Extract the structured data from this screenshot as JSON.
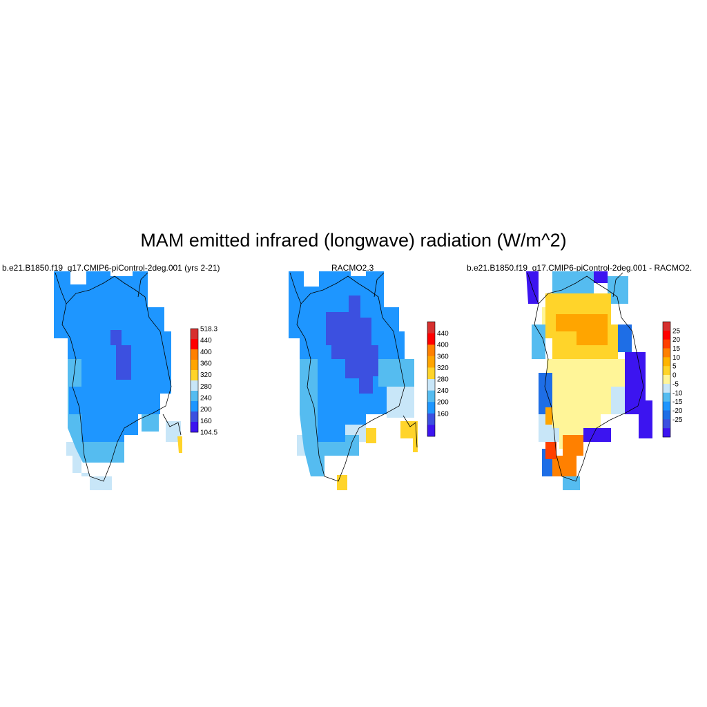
{
  "title": "MAM emitted infrared (longwave) radiation (W/m^2)",
  "panels": [
    {
      "title": "b.e21.B1850.f19_g17.CMIP6-piControl-2deg.001 (yrs 2-21)",
      "colorbar": {
        "labels": [
          "518.3",
          "440",
          "400",
          "360",
          "320",
          "280",
          "240",
          "200",
          "160",
          "104.5"
        ],
        "colors": [
          "#d7302f",
          "#ff0000",
          "#ff8000",
          "#ffa500",
          "#ffd42a",
          "#c8e6f8",
          "#55bcf0",
          "#1e96ff",
          "#3c50e0",
          "#3c14f0"
        ]
      }
    },
    {
      "title": "RACMO2.3",
      "colorbar": {
        "labels": [
          "440",
          "400",
          "360",
          "320",
          "280",
          "240",
          "200",
          "160"
        ],
        "colors": [
          "#d7302f",
          "#ff0000",
          "#ff8000",
          "#ffa500",
          "#ffd42a",
          "#c8e6f8",
          "#55bcf0",
          "#1e96ff",
          "#3c50e0",
          "#3c14f0"
        ]
      }
    },
    {
      "title": "b.e21.B1850.f19_g17.CMIP6-piControl-2deg.001 - RACMO2.",
      "colorbar": {
        "labels": [
          "25",
          "20",
          "15",
          "10",
          "5",
          "0",
          "-5",
          "-10",
          "-15",
          "-20",
          "-25"
        ],
        "colors": [
          "#d7302f",
          "#ff0000",
          "#ff4000",
          "#ff8000",
          "#ffb400",
          "#ffd42a",
          "#fff598",
          "#c8e6f8",
          "#55bcf0",
          "#1e96ff",
          "#1e6ee6",
          "#3c50e0",
          "#3c14f0"
        ]
      }
    }
  ],
  "palette": {
    "coast": "#000000",
    "cold": "#1e96ff",
    "mid": "#3c50e0",
    "light": "#c8e6f8",
    "sky": "#55bcf0",
    "yellow": "#ffd42a",
    "paleyellow": "#fff598",
    "orange": "#ffa500",
    "darkorange": "#ff8000",
    "red": "#ff4000",
    "violet": "#3c14f0"
  }
}
